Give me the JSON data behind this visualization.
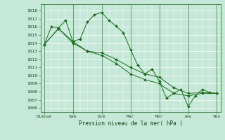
{
  "xlabel": "Pression niveau de la mer( hPa )",
  "bg_color": "#c5e8d8",
  "grid_color": "#ffffff",
  "line_color": "#1a6e1a",
  "marker_color": "#1a6e1a",
  "ylim_min": 1005.5,
  "ylim_max": 1018.8,
  "yticks": [
    1006,
    1007,
    1008,
    1009,
    1010,
    1011,
    1012,
    1013,
    1014,
    1015,
    1016,
    1017,
    1018
  ],
  "day_labels": [
    "Dimoun",
    "Sam",
    "Dim",
    "Mar",
    "Mer",
    "Jeu",
    "Ven"
  ],
  "day_positions": [
    0,
    4,
    8,
    12,
    16,
    20,
    24
  ],
  "series_a_x": [
    0,
    1,
    2,
    3,
    4,
    5,
    6,
    7,
    8,
    9,
    10,
    11,
    12,
    13,
    14,
    15,
    16,
    17,
    18,
    19,
    20,
    21,
    22,
    23,
    24
  ],
  "series_a_y": [
    1013.8,
    1016.0,
    1015.9,
    1016.8,
    1014.2,
    1014.5,
    1016.6,
    1017.5,
    1017.8,
    1016.8,
    1016.1,
    1015.3,
    1013.2,
    1011.3,
    1010.2,
    1010.8,
    1009.3,
    1007.2,
    1007.8,
    1008.3,
    1006.2,
    1007.5,
    1008.3,
    1007.9,
    1007.8
  ],
  "series_b_x": [
    0,
    2,
    4,
    6,
    8,
    10,
    12,
    14,
    16,
    18,
    20,
    22,
    24
  ],
  "series_b_y": [
    1013.8,
    1015.8,
    1014.2,
    1013.0,
    1012.8,
    1012.0,
    1011.0,
    1010.2,
    1009.8,
    1008.5,
    1007.8,
    1007.9,
    1007.8
  ],
  "series_c_x": [
    0,
    2,
    4,
    6,
    8,
    10,
    12,
    14,
    16,
    18,
    20,
    22,
    24
  ],
  "series_c_y": [
    1013.8,
    1015.8,
    1014.0,
    1013.0,
    1012.5,
    1011.5,
    1010.2,
    1009.5,
    1009.0,
    1007.8,
    1007.5,
    1007.8,
    1007.8
  ]
}
